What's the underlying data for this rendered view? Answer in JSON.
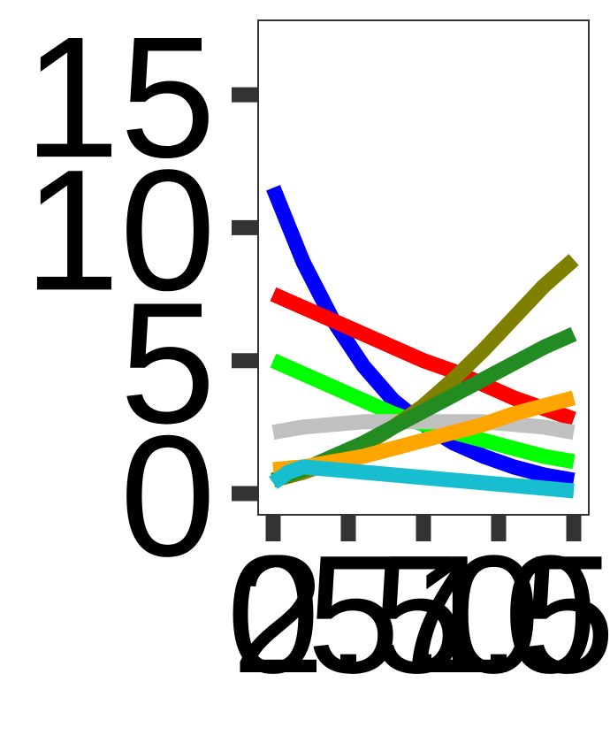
{
  "chart_data": {
    "type": "line",
    "title": "",
    "xlabel": "",
    "ylabel": "",
    "xlim": [
      -0.5,
      10.5
    ],
    "ylim": [
      -0.8,
      17.8
    ],
    "x_ticks": [
      0,
      2.5,
      5,
      7.5,
      10
    ],
    "x_tick_labels": [
      "0",
      "2.5",
      "5.0",
      "7.5",
      "10.0"
    ],
    "y_ticks": [
      0,
      5,
      10,
      15
    ],
    "y_tick_labels": [
      "0",
      "5",
      "10",
      "15"
    ],
    "grid": false,
    "legend": "none",
    "series": [
      {
        "color": "#0000ff",
        "x": [
          0,
          1,
          2,
          3,
          4,
          5,
          6,
          7,
          8,
          9,
          10
        ],
        "y": [
          11.5,
          8.7,
          6.5,
          4.8,
          3.5,
          2.6,
          1.9,
          1.4,
          1.0,
          0.7,
          0.5
        ]
      },
      {
        "color": "#ff0000",
        "x": [
          0,
          1,
          2,
          3,
          4,
          5,
          6,
          7,
          8,
          9,
          10
        ],
        "y": [
          7.5,
          7.0,
          6.5,
          6.0,
          5.5,
          5.0,
          4.6,
          4.1,
          3.6,
          3.2,
          2.8
        ]
      },
      {
        "color": "#00ff00",
        "x": [
          0,
          1,
          2,
          3,
          4,
          5,
          6,
          7,
          8,
          9,
          10
        ],
        "y": [
          5.0,
          4.5,
          4.0,
          3.5,
          3.0,
          2.6,
          2.3,
          2.0,
          1.7,
          1.4,
          1.2
        ]
      },
      {
        "color": "#c0c0c0",
        "x": [
          0,
          1,
          2,
          3,
          4,
          5,
          6,
          7,
          8,
          9,
          10
        ],
        "y": [
          2.3,
          2.5,
          2.6,
          2.7,
          2.7,
          2.7,
          2.7,
          2.7,
          2.6,
          2.5,
          2.3
        ]
      },
      {
        "color": "#808000",
        "x": [
          0,
          1,
          2,
          3,
          4,
          5,
          6,
          7,
          8,
          9,
          10
        ],
        "y": [
          0.5,
          0.8,
          1.2,
          1.8,
          2.5,
          3.3,
          4.3,
          5.4,
          6.6,
          7.8,
          8.8
        ]
      },
      {
        "color": "#228b22",
        "x": [
          0,
          1,
          2,
          3,
          4,
          5,
          6,
          7,
          8,
          9,
          10
        ],
        "y": [
          0.5,
          0.9,
          1.4,
          1.9,
          2.5,
          3.1,
          3.7,
          4.3,
          4.9,
          5.5,
          6.0
        ]
      },
      {
        "color": "#ffa500",
        "x": [
          0,
          1,
          2,
          3,
          4,
          5,
          6,
          7,
          8,
          9,
          10
        ],
        "y": [
          0.9,
          1.0,
          1.2,
          1.4,
          1.7,
          2.0,
          2.3,
          2.6,
          3.0,
          3.3,
          3.6
        ]
      },
      {
        "color": "#17becf",
        "x": [
          0,
          0.5,
          1,
          2,
          3,
          4,
          5,
          6,
          7,
          8,
          9,
          10
        ],
        "y": [
          0.4,
          0.8,
          1.0,
          0.9,
          0.8,
          0.7,
          0.6,
          0.5,
          0.4,
          0.3,
          0.2,
          0.1
        ]
      }
    ]
  }
}
